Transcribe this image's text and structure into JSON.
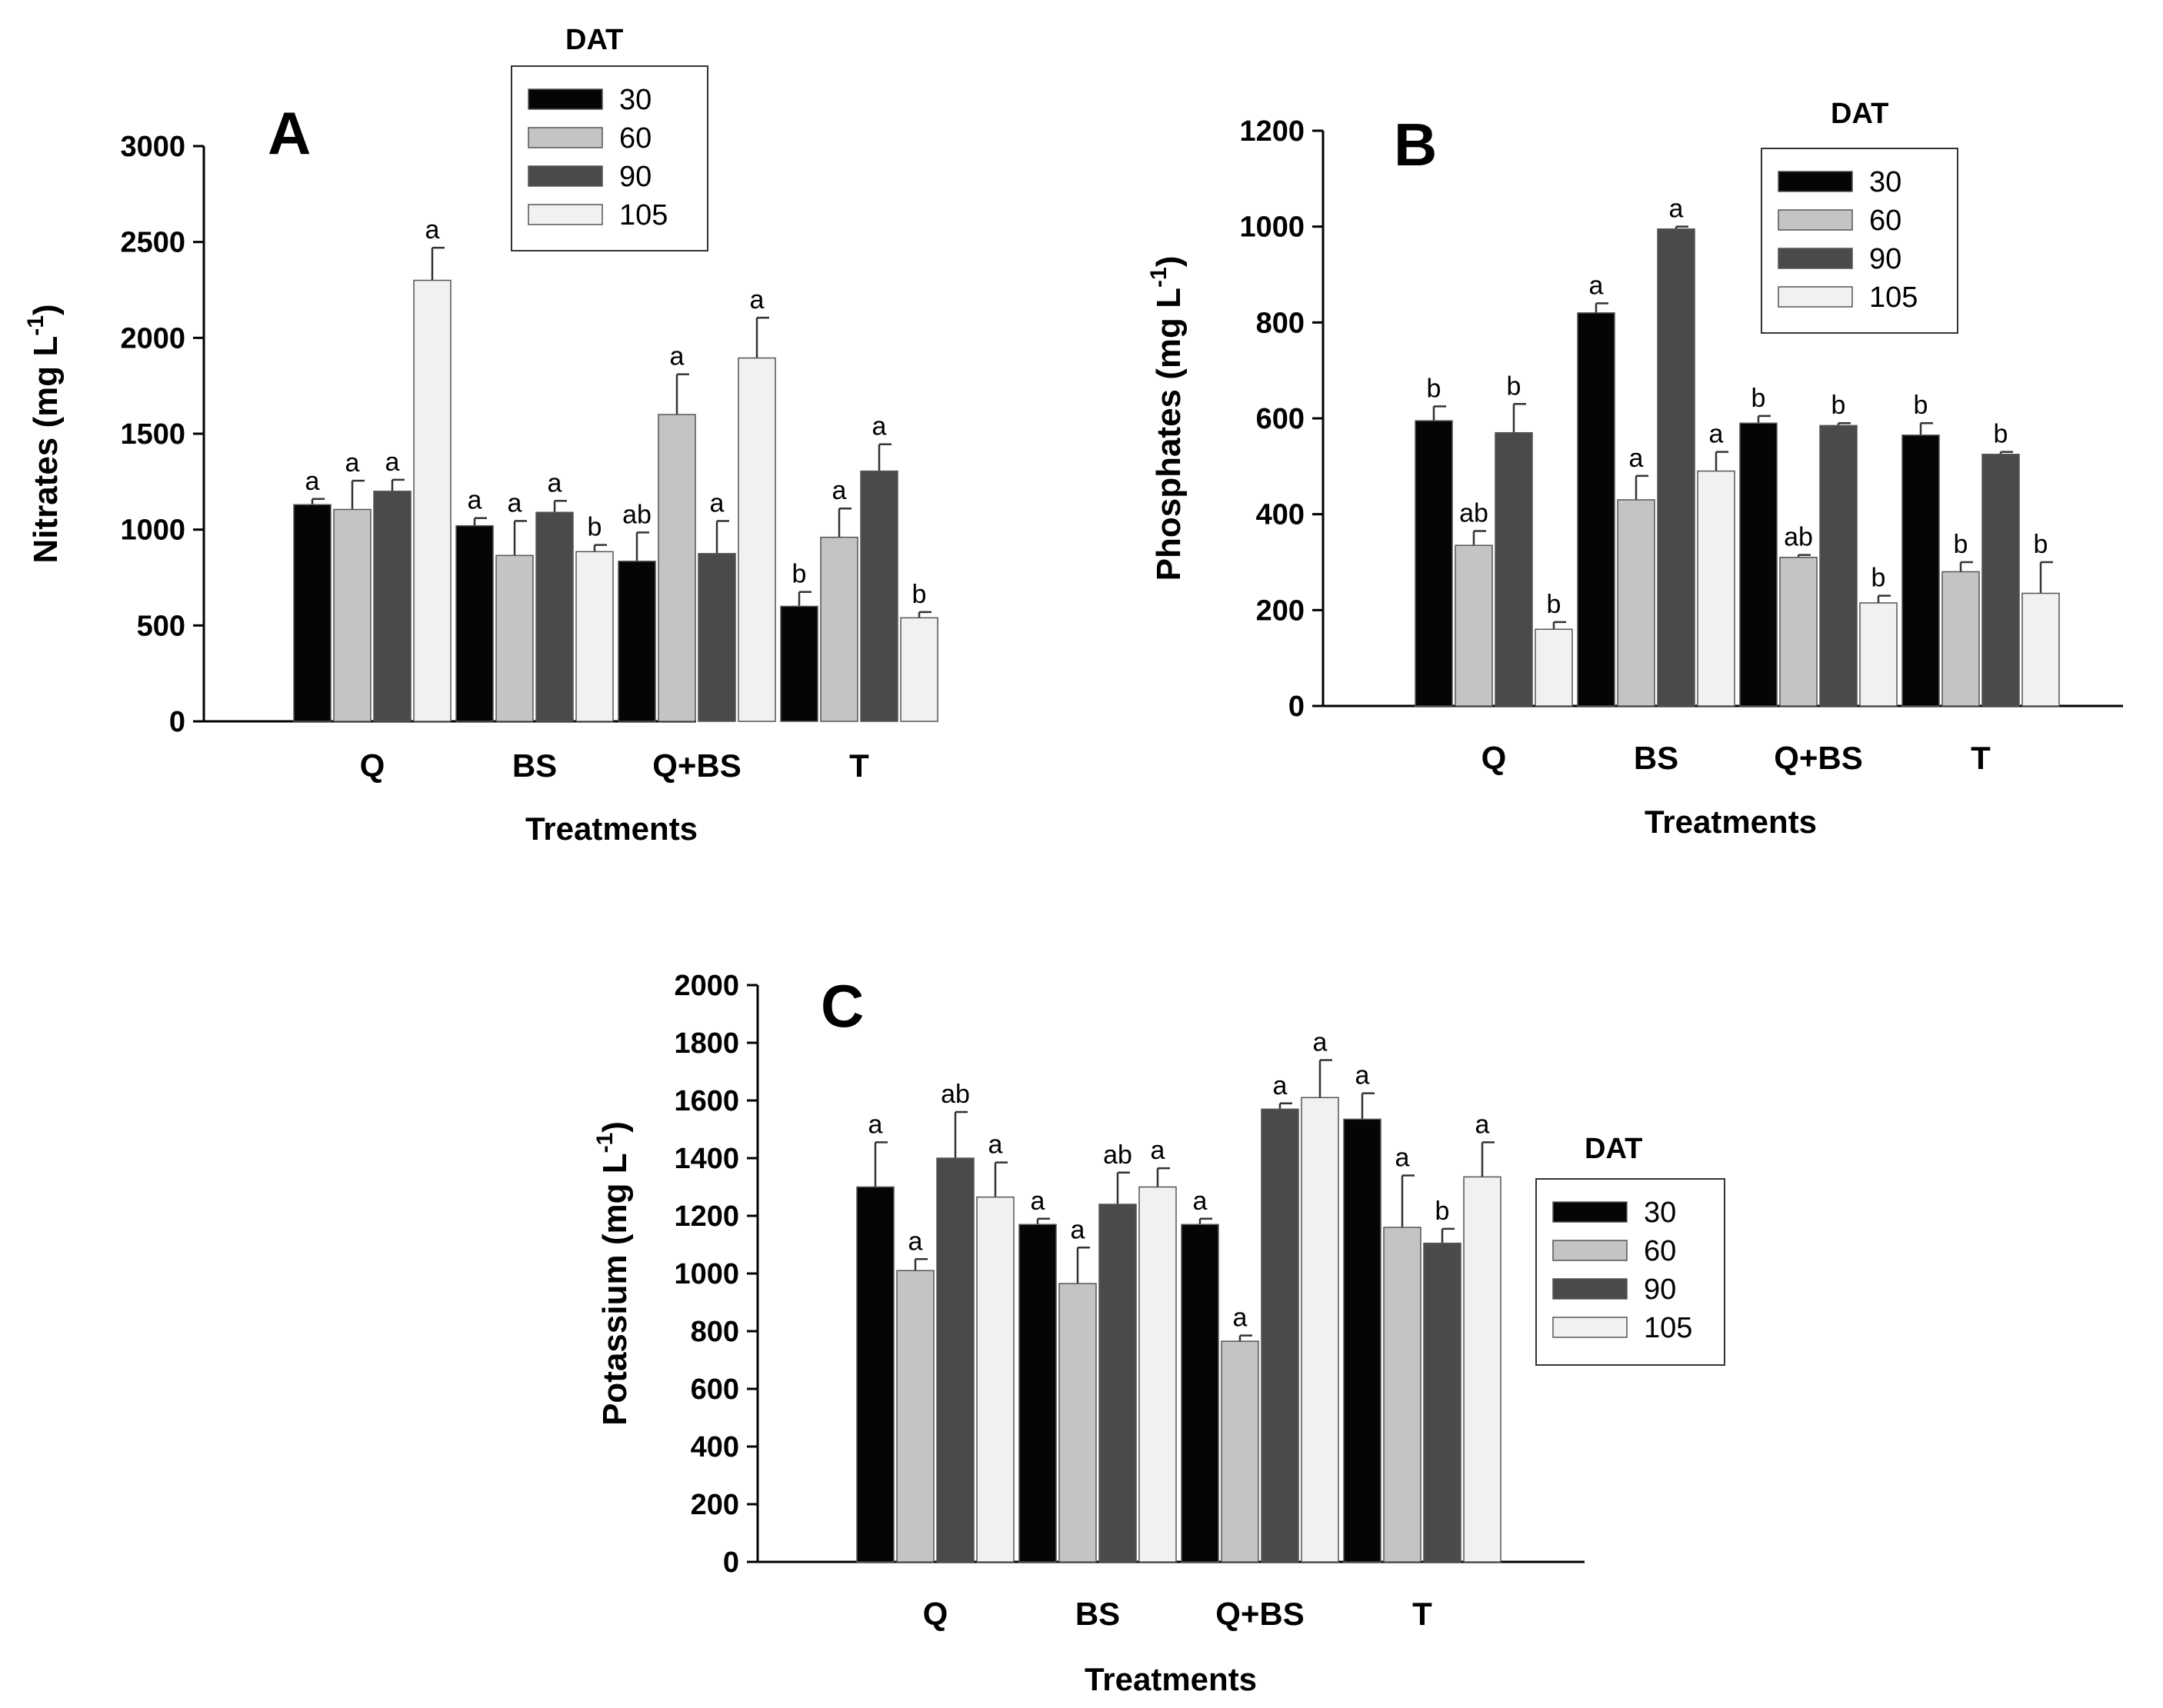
{
  "legend": {
    "title": "DAT",
    "entries": [
      "30",
      "60",
      "90",
      "105"
    ],
    "colors": [
      "#050505",
      "#c4c4c4",
      "#4a4a4a",
      "#f1f1f1"
    ]
  },
  "chart_data": [
    {
      "type": "bar",
      "panel": "A",
      "title": "",
      "xlabel": "Treatments",
      "ylabel": "Nitrates (mg L",
      "ylabel_sup": "-1",
      "ylabel_close": ")",
      "ylim": [
        0,
        3000
      ],
      "yticks": [
        0,
        500,
        1000,
        1500,
        2000,
        2500,
        3000
      ],
      "categories": [
        "Q",
        "BS",
        "Q+BS",
        "T"
      ],
      "legend_position": "top-center",
      "series": [
        {
          "name": "30",
          "values": [
            1130,
            1020,
            835,
            600
          ],
          "errors": [
            30,
            40,
            150,
            75
          ],
          "letters": [
            "a",
            "a",
            "ab",
            "b"
          ]
        },
        {
          "name": "60",
          "values": [
            1105,
            865,
            1600,
            960
          ],
          "errors": [
            150,
            180,
            210,
            150
          ],
          "letters": [
            "a",
            "a",
            "a",
            "a"
          ]
        },
        {
          "name": "90",
          "values": [
            1200,
            1090,
            875,
            1305
          ],
          "errors": [
            60,
            60,
            170,
            140
          ],
          "letters": [
            "a",
            "a",
            "a",
            "a"
          ]
        },
        {
          "name": "105",
          "values": [
            2300,
            885,
            1895,
            540
          ],
          "errors": [
            170,
            35,
            210,
            30
          ],
          "letters": [
            "a",
            "b",
            "a",
            "b"
          ]
        }
      ]
    },
    {
      "type": "bar",
      "panel": "B",
      "title": "",
      "xlabel": "Treatments",
      "ylabel": "Phosphates (mg L",
      "ylabel_sup": "-1",
      "ylabel_close": ")",
      "ylim": [
        0,
        1200
      ],
      "yticks": [
        0,
        200,
        400,
        600,
        800,
        1000,
        1200
      ],
      "categories": [
        "Q",
        "BS",
        "Q+BS",
        "T"
      ],
      "legend_position": "top-right",
      "series": [
        {
          "name": "30",
          "values": [
            595,
            820,
            590,
            565
          ],
          "errors": [
            30,
            20,
            15,
            25
          ],
          "letters": [
            "b",
            "a",
            "b",
            "b"
          ]
        },
        {
          "name": "60",
          "values": [
            335,
            430,
            310,
            280
          ],
          "errors": [
            30,
            50,
            5,
            20
          ],
          "letters": [
            "ab",
            "a",
            "ab",
            "b"
          ]
        },
        {
          "name": "90",
          "values": [
            570,
            995,
            585,
            525
          ],
          "errors": [
            60,
            5,
            5,
            5
          ],
          "letters": [
            "b",
            "a",
            "b",
            "b"
          ]
        },
        {
          "name": "105",
          "values": [
            160,
            490,
            215,
            235
          ],
          "errors": [
            15,
            40,
            15,
            65
          ],
          "letters": [
            "b",
            "a",
            "b",
            "b"
          ]
        }
      ]
    },
    {
      "type": "bar",
      "panel": "C",
      "title": "",
      "xlabel": "Treatments",
      "ylabel": "Potassium (mg L",
      "ylabel_sup": "-1",
      "ylabel_close": ")",
      "ylim": [
        0,
        2000
      ],
      "yticks": [
        0,
        200,
        400,
        600,
        800,
        1000,
        1200,
        1400,
        1600,
        1800,
        2000
      ],
      "categories": [
        "Q",
        "BS",
        "Q+BS",
        "T"
      ],
      "legend_position": "right",
      "series": [
        {
          "name": "30",
          "values": [
            1300,
            1170,
            1170,
            1535
          ],
          "errors": [
            155,
            20,
            20,
            90
          ],
          "letters": [
            "a",
            "a",
            "a",
            "a"
          ]
        },
        {
          "name": "60",
          "values": [
            1010,
            965,
            765,
            1160
          ],
          "errors": [
            40,
            125,
            20,
            180
          ],
          "letters": [
            "a",
            "a",
            "a",
            "a"
          ]
        },
        {
          "name": "90",
          "values": [
            1400,
            1240,
            1570,
            1105
          ],
          "errors": [
            160,
            110,
            20,
            50
          ],
          "letters": [
            "ab",
            "ab",
            "a",
            "b"
          ]
        },
        {
          "name": "105",
          "values": [
            1265,
            1300,
            1610,
            1335
          ],
          "errors": [
            120,
            65,
            130,
            120
          ],
          "letters": [
            "a",
            "a",
            "a",
            "a"
          ]
        }
      ]
    }
  ]
}
